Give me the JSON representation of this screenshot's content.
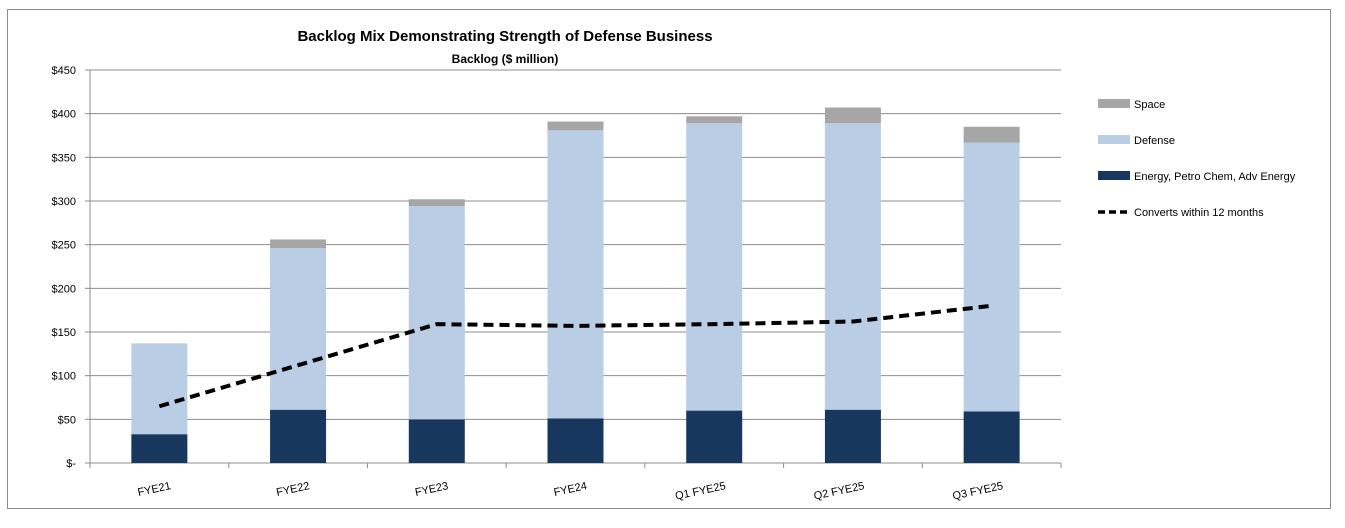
{
  "chart_data": {
    "type": "bar",
    "stacked": true,
    "title": "Backlog Mix Demonstrating Strength of Defense Business",
    "subtitle": "Backlog ($ million)",
    "categories": [
      "FYE21",
      "FYE22",
      "FYE23",
      "FYE24",
      "Q1 FYE25",
      "Q2 FYE25",
      "Q3 FYE25"
    ],
    "ylim": [
      0,
      450
    ],
    "yticks": [
      0,
      50,
      100,
      150,
      200,
      250,
      300,
      350,
      400,
      450
    ],
    "ytick_labels": [
      "$-",
      "$50",
      "$100",
      "$150",
      "$200",
      "$250",
      "$300",
      "$350",
      "$400",
      "$450"
    ],
    "grid": true,
    "legend_position": "right",
    "series": [
      {
        "name": "Energy, Petro Chem, Adv Energy",
        "color": "#17375e",
        "values": [
          33,
          61,
          50,
          51,
          60,
          61,
          59
        ]
      },
      {
        "name": "Defense",
        "color": "#b9cde5",
        "values": [
          104,
          185,
          244,
          330,
          329,
          328,
          308
        ]
      },
      {
        "name": "Space",
        "color": "#a6a6a6",
        "values": [
          0,
          10,
          8,
          10,
          8,
          18,
          18
        ]
      }
    ],
    "line_series": {
      "name": "Converts within 12 months",
      "color": "#000000",
      "style": "dashed",
      "values": [
        65,
        112,
        159,
        157,
        159,
        162,
        180
      ]
    },
    "legend_order": [
      "Space",
      "Defense",
      "Energy, Petro Chem, Adv Energy",
      "Converts within 12 months"
    ]
  }
}
